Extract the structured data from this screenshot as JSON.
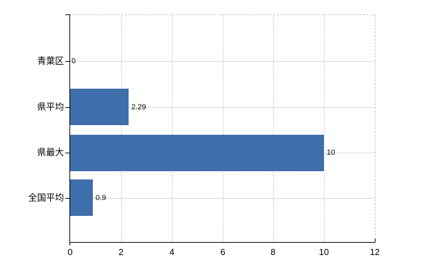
{
  "chart_data": {
    "type": "bar",
    "orientation": "horizontal",
    "title": "",
    "categories": [
      "青葉区",
      "県平均",
      "県最大",
      "全国平均"
    ],
    "values": [
      0,
      2.29,
      10,
      0.9
    ],
    "value_labels": [
      "0",
      "2.29",
      "10",
      "0.9"
    ],
    "x_ticks": [
      0,
      2,
      4,
      6,
      8,
      10,
      12
    ],
    "x_tick_labels": [
      "0",
      "2",
      "4",
      "6",
      "8",
      "10",
      "12"
    ],
    "xlim": [
      0,
      12
    ],
    "grid": true,
    "legend": false,
    "colors": {
      "bar_average": "#3e6dab",
      "bar_light": "#4d7cba",
      "bar_dark": "#30609c",
      "grid_horizontal": "#d6dcd2",
      "grid_vertical": "#d2ced6",
      "border_dashed": "#c9c5cc",
      "axis": "#000000",
      "text": "#000000",
      "background": "#ffffff"
    }
  }
}
